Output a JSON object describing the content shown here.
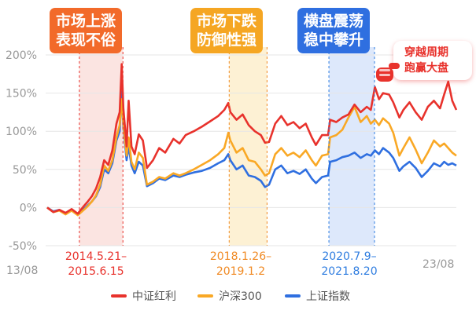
{
  "chart_data": {
    "type": "line",
    "title": "",
    "xlabel": "",
    "ylabel": "",
    "x_start": "13/08",
    "x_end": "23/08",
    "x_range": [
      2013.6,
      2023.65
    ],
    "ylim": [
      -50,
      200
    ],
    "yticks": [
      "200%",
      "150%",
      "100%",
      "50%",
      "0%",
      "-50%"
    ],
    "grid": true,
    "legend_position": "bottom",
    "series": [
      {
        "name": "中证红利",
        "color": "#e8322c",
        "points": [
          [
            2013.6,
            0
          ],
          [
            2013.75,
            -6
          ],
          [
            2013.9,
            -3
          ],
          [
            2014.05,
            -7
          ],
          [
            2014.2,
            -2
          ],
          [
            2014.35,
            -8
          ],
          [
            2014.5,
            2
          ],
          [
            2014.6,
            8
          ],
          [
            2014.7,
            15
          ],
          [
            2014.8,
            25
          ],
          [
            2014.9,
            40
          ],
          [
            2015.0,
            62
          ],
          [
            2015.1,
            56
          ],
          [
            2015.2,
            75
          ],
          [
            2015.3,
            110
          ],
          [
            2015.38,
            125
          ],
          [
            2015.43,
            188
          ],
          [
            2015.47,
            130
          ],
          [
            2015.55,
            80
          ],
          [
            2015.6,
            140
          ],
          [
            2015.67,
            80
          ],
          [
            2015.75,
            70
          ],
          [
            2015.85,
            96
          ],
          [
            2015.95,
            88
          ],
          [
            2016.05,
            52
          ],
          [
            2016.2,
            62
          ],
          [
            2016.35,
            78
          ],
          [
            2016.5,
            72
          ],
          [
            2016.7,
            90
          ],
          [
            2016.85,
            84
          ],
          [
            2017.0,
            95
          ],
          [
            2017.2,
            100
          ],
          [
            2017.4,
            106
          ],
          [
            2017.6,
            113
          ],
          [
            2017.8,
            120
          ],
          [
            2017.95,
            128
          ],
          [
            2018.05,
            137
          ],
          [
            2018.1,
            125
          ],
          [
            2018.25,
            115
          ],
          [
            2018.4,
            122
          ],
          [
            2018.55,
            108
          ],
          [
            2018.7,
            100
          ],
          [
            2018.85,
            95
          ],
          [
            2018.95,
            85
          ],
          [
            2019.05,
            86
          ],
          [
            2019.2,
            110
          ],
          [
            2019.35,
            120
          ],
          [
            2019.5,
            108
          ],
          [
            2019.65,
            112
          ],
          [
            2019.8,
            104
          ],
          [
            2019.95,
            110
          ],
          [
            2020.1,
            92
          ],
          [
            2020.2,
            82
          ],
          [
            2020.35,
            95
          ],
          [
            2020.5,
            95
          ],
          [
            2020.55,
            115
          ],
          [
            2020.7,
            112
          ],
          [
            2020.85,
            118
          ],
          [
            2021.0,
            122
          ],
          [
            2021.15,
            135
          ],
          [
            2021.3,
            125
          ],
          [
            2021.45,
            132
          ],
          [
            2021.55,
            128
          ],
          [
            2021.65,
            158
          ],
          [
            2021.75,
            142
          ],
          [
            2021.85,
            150
          ],
          [
            2022.0,
            148
          ],
          [
            2022.1,
            138
          ],
          [
            2022.25,
            118
          ],
          [
            2022.35,
            128
          ],
          [
            2022.5,
            138
          ],
          [
            2022.65,
            125
          ],
          [
            2022.8,
            115
          ],
          [
            2022.95,
            132
          ],
          [
            2023.1,
            140
          ],
          [
            2023.25,
            130
          ],
          [
            2023.35,
            148
          ],
          [
            2023.45,
            165
          ],
          [
            2023.55,
            140
          ],
          [
            2023.65,
            128
          ]
        ]
      },
      {
        "name": "沪深300",
        "color": "#f9a825",
        "points": [
          [
            2013.6,
            0
          ],
          [
            2013.75,
            -6
          ],
          [
            2013.9,
            -4
          ],
          [
            2014.05,
            -9
          ],
          [
            2014.2,
            -4
          ],
          [
            2014.35,
            -10
          ],
          [
            2014.5,
            -3
          ],
          [
            2014.6,
            2
          ],
          [
            2014.7,
            8
          ],
          [
            2014.8,
            16
          ],
          [
            2014.9,
            30
          ],
          [
            2015.0,
            55
          ],
          [
            2015.1,
            48
          ],
          [
            2015.2,
            62
          ],
          [
            2015.3,
            92
          ],
          [
            2015.38,
            108
          ],
          [
            2015.43,
            142
          ],
          [
            2015.47,
            110
          ],
          [
            2015.55,
            68
          ],
          [
            2015.6,
            92
          ],
          [
            2015.67,
            60
          ],
          [
            2015.75,
            50
          ],
          [
            2015.85,
            72
          ],
          [
            2015.95,
            65
          ],
          [
            2016.05,
            30
          ],
          [
            2016.2,
            34
          ],
          [
            2016.35,
            40
          ],
          [
            2016.5,
            38
          ],
          [
            2016.7,
            45
          ],
          [
            2016.85,
            42
          ],
          [
            2017.0,
            45
          ],
          [
            2017.2,
            50
          ],
          [
            2017.4,
            56
          ],
          [
            2017.6,
            62
          ],
          [
            2017.8,
            70
          ],
          [
            2017.95,
            78
          ],
          [
            2018.05,
            98
          ],
          [
            2018.1,
            88
          ],
          [
            2018.25,
            72
          ],
          [
            2018.4,
            78
          ],
          [
            2018.55,
            62
          ],
          [
            2018.7,
            60
          ],
          [
            2018.85,
            50
          ],
          [
            2018.95,
            42
          ],
          [
            2019.05,
            45
          ],
          [
            2019.2,
            70
          ],
          [
            2019.35,
            78
          ],
          [
            2019.5,
            68
          ],
          [
            2019.65,
            72
          ],
          [
            2019.8,
            66
          ],
          [
            2019.95,
            75
          ],
          [
            2020.1,
            62
          ],
          [
            2020.2,
            55
          ],
          [
            2020.35,
            68
          ],
          [
            2020.5,
            70
          ],
          [
            2020.55,
            92
          ],
          [
            2020.7,
            95
          ],
          [
            2020.85,
            102
          ],
          [
            2021.0,
            118
          ],
          [
            2021.15,
            132
          ],
          [
            2021.3,
            112
          ],
          [
            2021.45,
            120
          ],
          [
            2021.55,
            110
          ],
          [
            2021.65,
            115
          ],
          [
            2021.75,
            108
          ],
          [
            2021.85,
            117
          ],
          [
            2022.0,
            110
          ],
          [
            2022.1,
            98
          ],
          [
            2022.25,
            68
          ],
          [
            2022.35,
            78
          ],
          [
            2022.5,
            92
          ],
          [
            2022.65,
            76
          ],
          [
            2022.8,
            58
          ],
          [
            2022.95,
            72
          ],
          [
            2023.1,
            88
          ],
          [
            2023.25,
            80
          ],
          [
            2023.35,
            84
          ],
          [
            2023.45,
            78
          ],
          [
            2023.55,
            72
          ],
          [
            2023.65,
            68
          ]
        ]
      },
      {
        "name": "上证指数",
        "color": "#2f6fe0",
        "points": [
          [
            2013.6,
            0
          ],
          [
            2013.75,
            -5
          ],
          [
            2013.9,
            -3
          ],
          [
            2014.05,
            -8
          ],
          [
            2014.2,
            -3
          ],
          [
            2014.35,
            -9
          ],
          [
            2014.5,
            -2
          ],
          [
            2014.6,
            3
          ],
          [
            2014.7,
            8
          ],
          [
            2014.8,
            15
          ],
          [
            2014.9,
            27
          ],
          [
            2015.0,
            50
          ],
          [
            2015.1,
            45
          ],
          [
            2015.2,
            58
          ],
          [
            2015.3,
            88
          ],
          [
            2015.38,
            100
          ],
          [
            2015.43,
            152
          ],
          [
            2015.47,
            105
          ],
          [
            2015.55,
            62
          ],
          [
            2015.6,
            80
          ],
          [
            2015.67,
            55
          ],
          [
            2015.75,
            45
          ],
          [
            2015.85,
            60
          ],
          [
            2015.95,
            55
          ],
          [
            2016.05,
            28
          ],
          [
            2016.2,
            32
          ],
          [
            2016.35,
            38
          ],
          [
            2016.5,
            36
          ],
          [
            2016.7,
            42
          ],
          [
            2016.85,
            40
          ],
          [
            2017.0,
            43
          ],
          [
            2017.2,
            46
          ],
          [
            2017.4,
            48
          ],
          [
            2017.6,
            52
          ],
          [
            2017.8,
            58
          ],
          [
            2017.95,
            62
          ],
          [
            2018.05,
            70
          ],
          [
            2018.1,
            62
          ],
          [
            2018.25,
            50
          ],
          [
            2018.4,
            55
          ],
          [
            2018.55,
            42
          ],
          [
            2018.7,
            40
          ],
          [
            2018.85,
            35
          ],
          [
            2018.95,
            27
          ],
          [
            2019.05,
            30
          ],
          [
            2019.2,
            50
          ],
          [
            2019.35,
            55
          ],
          [
            2019.5,
            45
          ],
          [
            2019.65,
            48
          ],
          [
            2019.8,
            44
          ],
          [
            2019.95,
            50
          ],
          [
            2020.1,
            38
          ],
          [
            2020.2,
            32
          ],
          [
            2020.35,
            40
          ],
          [
            2020.5,
            42
          ],
          [
            2020.55,
            60
          ],
          [
            2020.7,
            62
          ],
          [
            2020.85,
            66
          ],
          [
            2021.0,
            68
          ],
          [
            2021.15,
            72
          ],
          [
            2021.3,
            65
          ],
          [
            2021.45,
            70
          ],
          [
            2021.55,
            68
          ],
          [
            2021.65,
            75
          ],
          [
            2021.75,
            70
          ],
          [
            2021.85,
            78
          ],
          [
            2022.0,
            72
          ],
          [
            2022.1,
            65
          ],
          [
            2022.25,
            48
          ],
          [
            2022.35,
            54
          ],
          [
            2022.5,
            60
          ],
          [
            2022.65,
            52
          ],
          [
            2022.8,
            40
          ],
          [
            2022.95,
            48
          ],
          [
            2023.1,
            58
          ],
          [
            2023.25,
            54
          ],
          [
            2023.35,
            60
          ],
          [
            2023.45,
            56
          ],
          [
            2023.55,
            58
          ],
          [
            2023.65,
            55
          ]
        ]
      }
    ],
    "periods": [
      {
        "start": "2014.5.21",
        "end": "2015.6.15",
        "x0": 2014.39,
        "x1": 2015.46,
        "fill": "#fbe4e1",
        "label_color": "#e8322c",
        "callout": [
          "市场上涨",
          "表现不俗"
        ],
        "callout_color": "#f26a2a"
      },
      {
        "start": "2018.1.26",
        "end": "2019.1.2",
        "x0": 2018.07,
        "x1": 2019.0,
        "fill": "#fdf1d4",
        "label_color": "#f08a24",
        "callout": [
          "市场下跌",
          "防御性强"
        ],
        "callout_color": "#f5a623"
      },
      {
        "start": "2020.7.9",
        "end": "2021.8.20",
        "x0": 2020.52,
        "x1": 2021.64,
        "fill": "#dde8fb",
        "label_color": "#2f7de0",
        "callout": [
          "横盘震荡",
          "稳中攀升"
        ],
        "callout_color": "#2f6fe0"
      }
    ],
    "annotation": [
      "穿越周期",
      "跑赢大盘"
    ]
  }
}
